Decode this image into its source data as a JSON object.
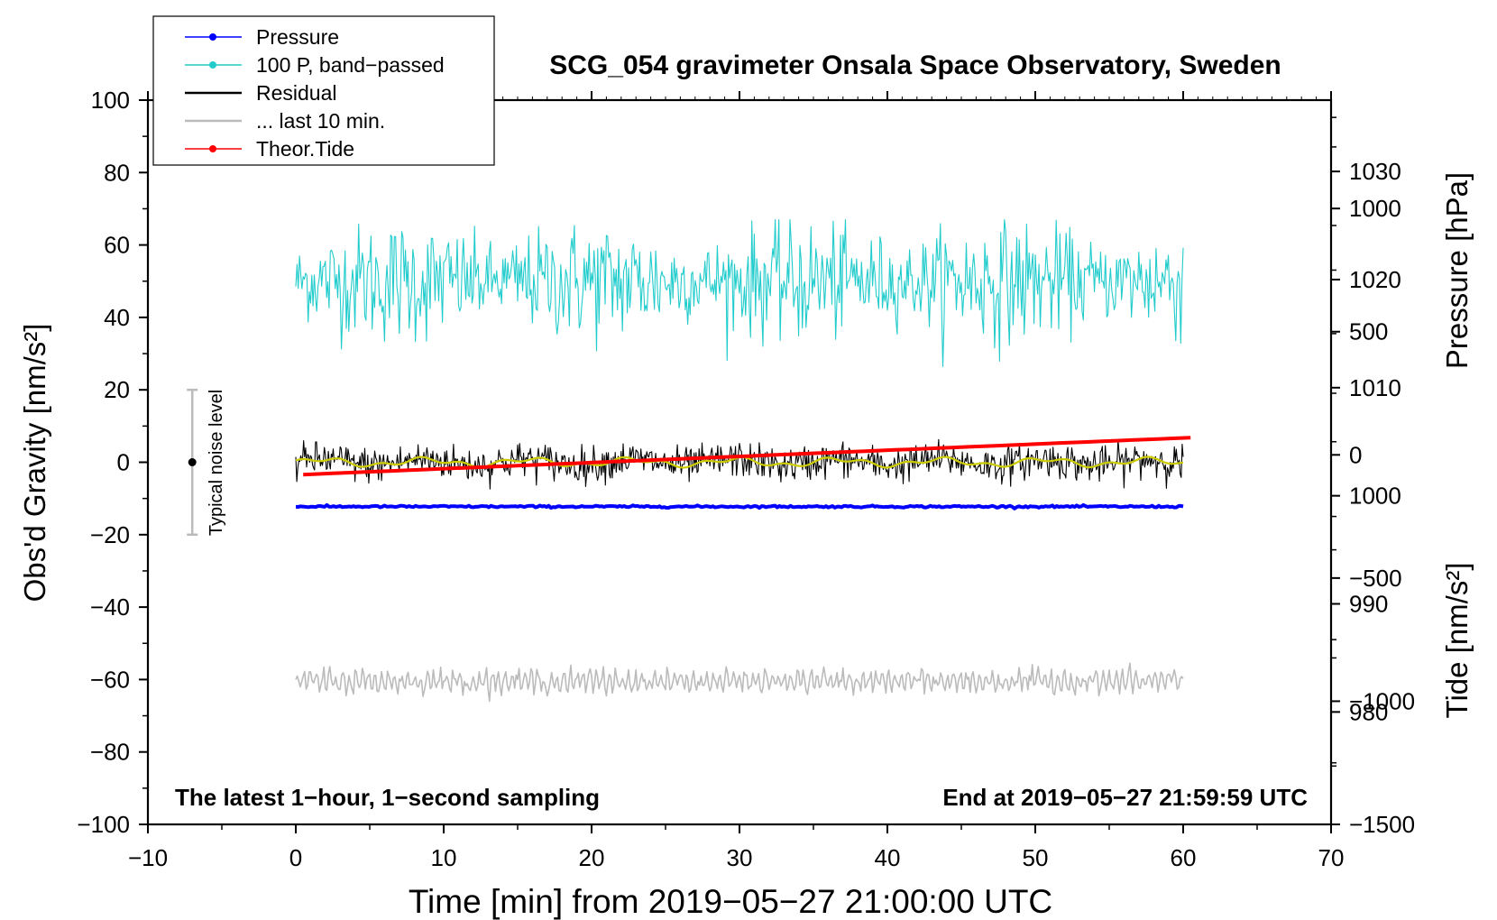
{
  "chart_data": {
    "type": "line",
    "title": "SCG_054 gravimeter Onsala Space Observatory, Sweden",
    "xlabel": "Time [min] from 2019−05−27 21:00:00 UTC",
    "ylabel_left": "Obs'd Gravity [nm/s²]",
    "ylabel_pressure": "Pressure [hPa]",
    "ylabel_tide": "Tide [nm/s²]",
    "xlim": [
      -10,
      70
    ],
    "ylim": [
      -100,
      100
    ],
    "pressure_ylim": [
      969.6,
      1036.6
    ],
    "tide_ylim": [
      -1500,
      1440
    ],
    "x_ticks": [
      "−10",
      "0",
      "10",
      "20",
      "30",
      "40",
      "50",
      "60",
      "70"
    ],
    "x_tick_values": [
      -10,
      0,
      10,
      20,
      30,
      40,
      50,
      60,
      70
    ],
    "y_ticks": [
      "100",
      "80",
      "60",
      "40",
      "20",
      "0",
      "−20",
      "−40",
      "−60",
      "−80",
      "−100"
    ],
    "y_tick_values": [
      100,
      80,
      60,
      40,
      20,
      0,
      -20,
      -40,
      -60,
      -80,
      -100
    ],
    "pressure_ticks": [
      "1030",
      "1020",
      "1010",
      "1000",
      "990",
      "980"
    ],
    "pressure_tick_values": [
      1030,
      1020,
      1010,
      1000,
      990,
      980
    ],
    "tide_ticks": [
      "1000",
      "500",
      "0",
      "−500",
      "−1000",
      "−1500"
    ],
    "tide_tick_values": [
      1000,
      500,
      0,
      -500,
      -1000,
      -1500
    ],
    "legend": [
      {
        "label": "Pressure",
        "color": "#0000ff",
        "marker": "dot"
      },
      {
        "label": "100 P, band−passed",
        "color": "#22cccc",
        "marker": "dot"
      },
      {
        "label": "Residual",
        "color": "#000000",
        "marker": "none"
      },
      {
        "label": "... last 10 min.",
        "color": "#bbbbbb",
        "marker": "none"
      },
      {
        "label": "Theor.Tide",
        "color": "#ff0000",
        "marker": "dot"
      }
    ],
    "legend_position": "top-left",
    "annotation_left": "The latest 1−hour, 1−second sampling",
    "annotation_right": "End at 2019−05−27 21:59:59 UTC",
    "noise_label": "Typical noise level",
    "noise_bar": {
      "x": -7,
      "low": -20,
      "high": 20,
      "center": 0
    },
    "series": [
      {
        "name": "Pressure",
        "axis": "pressure",
        "color": "#0000ff",
        "x_range": [
          0,
          60
        ],
        "start": 999.0,
        "end": 999.0,
        "noise_amplitude": 0.15
      },
      {
        "name": "100 P, band−passed",
        "axis": "left",
        "color": "#22cccc",
        "x_range": [
          0,
          60
        ],
        "mean": 50,
        "noise_amplitude": 6,
        "min": 24,
        "max": 67
      },
      {
        "name": "Residual",
        "axis": "left",
        "color": "#000000",
        "x_range": [
          0,
          60
        ],
        "mean": 0,
        "noise_amplitude": 3,
        "min": -9,
        "max": 7
      },
      {
        "name": "Residual smoothed",
        "axis": "left",
        "color": "#cccc00",
        "x_range": [
          0,
          60
        ],
        "mean": 0,
        "noise_amplitude": 1.5
      },
      {
        "name": "Theor.Tide",
        "axis": "tide",
        "color": "#ff0000",
        "x_range": [
          0.5,
          60.5
        ],
        "start": -80,
        "end": 70
      },
      {
        "name": "... last 10 min.",
        "axis": "left",
        "color": "#bbbbbb",
        "x_range": [
          0,
          60
        ],
        "mean": -60.5,
        "noise_amplitude": 2.5,
        "min": -66,
        "max": -55
      }
    ]
  }
}
